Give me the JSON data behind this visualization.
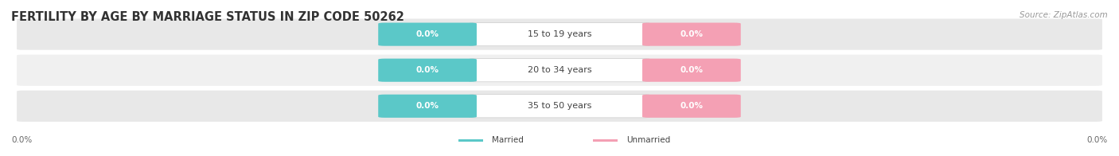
{
  "title": "FERTILITY BY AGE BY MARRIAGE STATUS IN ZIP CODE 50262",
  "source": "Source: ZipAtlas.com",
  "categories": [
    "15 to 19 years",
    "20 to 34 years",
    "35 to 50 years"
  ],
  "married_values": [
    "0.0%",
    "0.0%",
    "0.0%"
  ],
  "unmarried_values": [
    "0.0%",
    "0.0%",
    "0.0%"
  ],
  "married_color": "#5bc8c8",
  "unmarried_color": "#f4a0b4",
  "bar_bg_color": "#e8e8e8",
  "bar_bg_color2": "#f0f0f0",
  "title_fontsize": 10.5,
  "source_fontsize": 7.5,
  "label_fontsize": 7.5,
  "category_fontsize": 8,
  "axis_label_left": "0.0%",
  "axis_label_right": "0.0%",
  "bg_color": "#ffffff",
  "plot_bg_color": "#f5f5f5",
  "legend_married": "Married",
  "legend_unmarried": "Unmarried"
}
